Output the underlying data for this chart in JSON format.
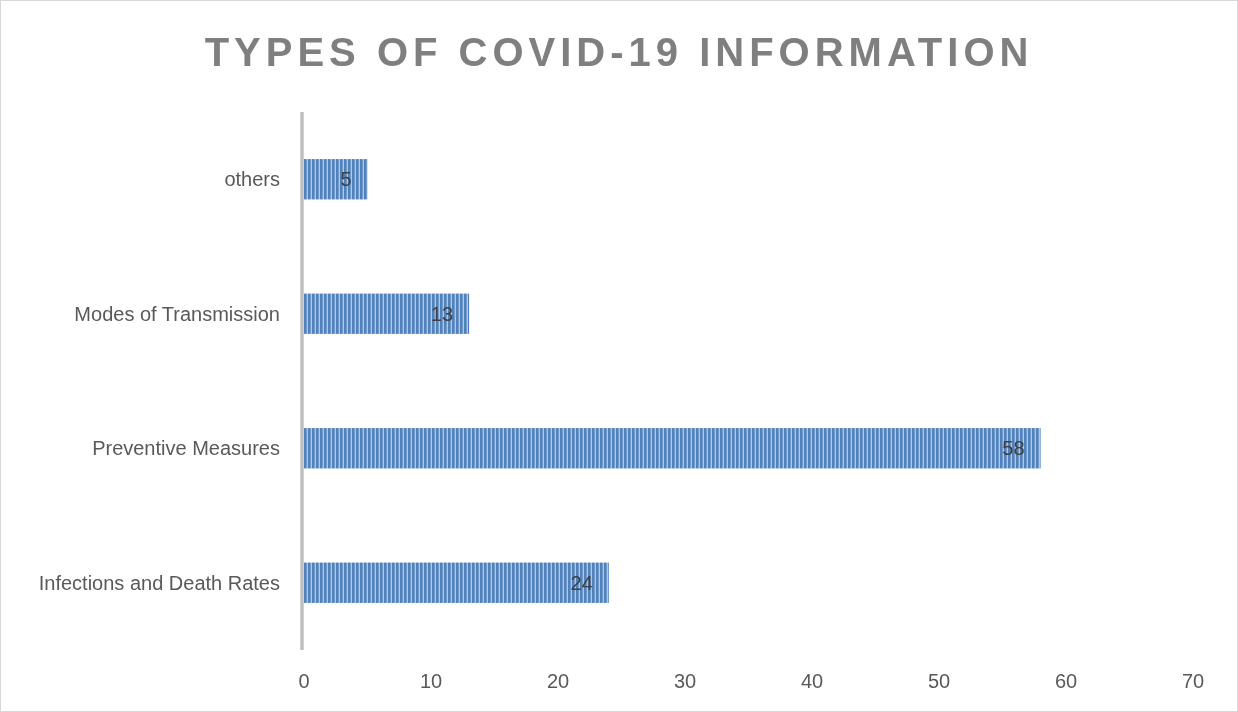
{
  "chart_data": {
    "type": "bar",
    "orientation": "horizontal",
    "title": "TYPES OF COVID-19 INFORMATION",
    "categories": [
      "others",
      "Modes of Transmission",
      "Preventive Measures",
      "Infections and Death Rates"
    ],
    "values": [
      5,
      13,
      58,
      24
    ],
    "color": "#4f81bd",
    "xlim": [
      0,
      70
    ],
    "xticks": [
      0,
      10,
      20,
      30,
      40,
      50,
      60,
      70
    ],
    "data_labels": true
  }
}
